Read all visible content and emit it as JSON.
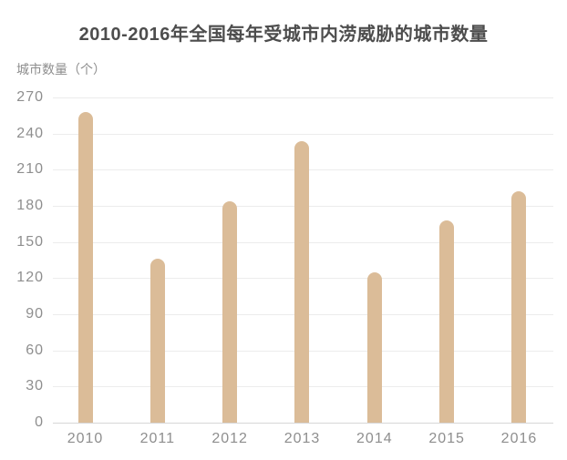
{
  "chart_data": {
    "type": "bar",
    "title": "2010-2016年全国每年受城市内涝威胁的城市数量",
    "ylabel": "城市数量（个）",
    "xlabel": "",
    "categories": [
      "2010",
      "2011",
      "2012",
      "2013",
      "2014",
      "2015",
      "2016"
    ],
    "values": [
      258,
      136,
      184,
      234,
      125,
      168,
      192
    ],
    "yticks": [
      0,
      30,
      60,
      90,
      120,
      150,
      180,
      210,
      240,
      270
    ],
    "ylim": [
      0,
      270
    ],
    "grid": true,
    "legend": "none",
    "colors": {
      "bar": "#dbbc98",
      "gridline": "#ececec",
      "axis_line": "#d6d6d6",
      "tick_text": "#8e8e8e",
      "title_text": "#4d4d4d",
      "background": "#ffffff"
    }
  }
}
